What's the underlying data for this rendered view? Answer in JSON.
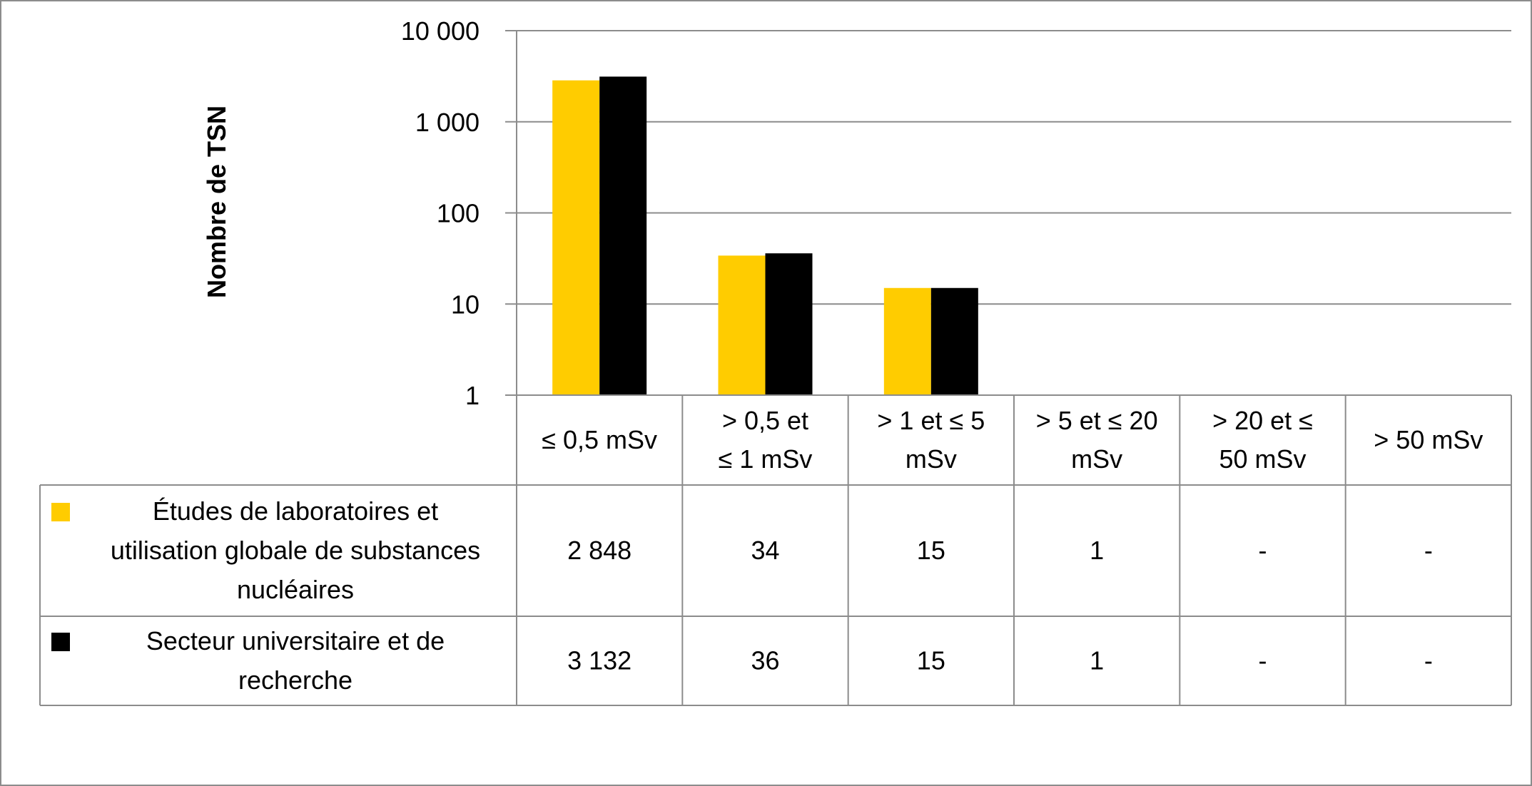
{
  "chart_data": {
    "type": "bar",
    "title": "",
    "xlabel": "",
    "ylabel": "Nombre de TSN",
    "y_scale": "log",
    "ylim": [
      1,
      10000
    ],
    "y_ticks": [
      {
        "value": 1,
        "label": "1"
      },
      {
        "value": 10,
        "label": "10"
      },
      {
        "value": 100,
        "label": "100"
      },
      {
        "value": 1000,
        "label": "1 000"
      },
      {
        "value": 10000,
        "label": "10 000"
      }
    ],
    "grid": true,
    "legend": "data-table",
    "categories": [
      [
        "≤ 0,5 mSv"
      ],
      [
        "> 0,5 et",
        "≤ 1 mSv"
      ],
      [
        "> 1 et ≤ 5",
        "mSv"
      ],
      [
        "> 5 et ≤ 20",
        "mSv"
      ],
      [
        "> 20 et ≤",
        "50 mSv"
      ],
      [
        "> 50 mSv"
      ]
    ],
    "series": [
      {
        "name": [
          "Études de laboratoires et",
          "utilisation globale de substances",
          "nucléaires"
        ],
        "color": "#FFCC00",
        "values": [
          2848,
          34,
          15,
          1,
          null,
          null
        ],
        "labels": [
          "2 848",
          "34",
          "15",
          "1",
          "-",
          "-"
        ]
      },
      {
        "name": [
          "Secteur universitaire et de",
          "recherche"
        ],
        "color": "#000000",
        "values": [
          3132,
          36,
          15,
          1,
          null,
          null
        ],
        "labels": [
          "3 132",
          "36",
          "15",
          "1",
          "-",
          "-"
        ]
      }
    ]
  }
}
